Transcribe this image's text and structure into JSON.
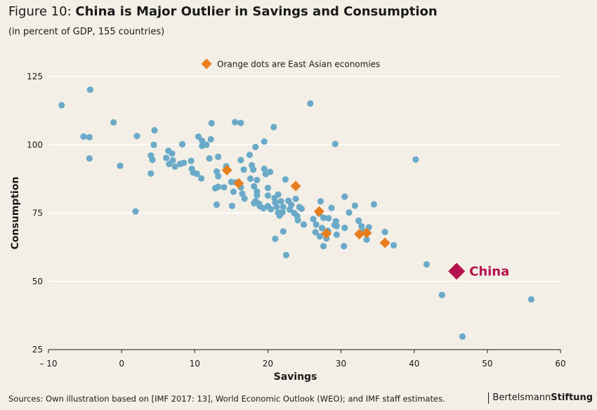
{
  "header": {
    "title_prefix": "Figure 10: ",
    "title_main": "China is Major Outlier in Savings and Consumption",
    "subtitle": "(in percent of GDP, 155 countries)"
  },
  "footer": {
    "source": "Sources: Own illustration based on [IMF 2017: 13], World Economic Outlook (WEO); and IMF staff estimates.",
    "logo_regular": "Bertelsmann",
    "logo_bold": "Stiftung"
  },
  "colors": {
    "background": "#f3efe6",
    "dot": "#6aaac8",
    "east_asia": "#e87d1e",
    "china": "#b5124c",
    "grid": "#ffffff"
  },
  "chart_data": {
    "type": "scatter",
    "xlabel": "Savings",
    "ylabel": "Consumption",
    "xlim": [
      -10,
      60
    ],
    "ylim": [
      25,
      125
    ],
    "xticks": [
      -10,
      0,
      10,
      20,
      30,
      40,
      50,
      60
    ],
    "xtick_labels": [
      "– 10",
      "0",
      "10",
      "20",
      "30",
      "40",
      "50",
      "60"
    ],
    "yticks": [
      25,
      50,
      75,
      100,
      125
    ],
    "grid": "horizontal",
    "legend": {
      "label": "Orange dots are East Asian economies",
      "position": "top-center"
    },
    "annotation": {
      "label": "China",
      "x": 45.8,
      "y": 53.7
    },
    "series": [
      {
        "name": "",
        "marker": "circle",
        "points": [
          [
            -8.2,
            114.5
          ],
          [
            -4.3,
            120.2
          ],
          [
            -5.2,
            103.0
          ],
          [
            -4.4,
            102.8
          ],
          [
            -4.4,
            95.0
          ],
          [
            -1.1,
            108.2
          ],
          [
            -0.2,
            92.3
          ],
          [
            2.1,
            103.2
          ],
          [
            1.9,
            75.6
          ],
          [
            4.5,
            105.3
          ],
          [
            4.4,
            100.0
          ],
          [
            4.0,
            96.1
          ],
          [
            4.2,
            94.5
          ],
          [
            4.0,
            89.5
          ],
          [
            6.1,
            95.2
          ],
          [
            6.4,
            97.8
          ],
          [
            6.9,
            96.8
          ],
          [
            7.0,
            94.3
          ],
          [
            7.3,
            92.0
          ],
          [
            6.5,
            93.0
          ],
          [
            8.0,
            93.0
          ],
          [
            8.3,
            100.2
          ],
          [
            8.5,
            93.4
          ],
          [
            9.5,
            94.1
          ],
          [
            9.6,
            91.2
          ],
          [
            9.8,
            89.8
          ],
          [
            10.3,
            89.4
          ],
          [
            10.9,
            87.7
          ],
          [
            10.5,
            103.0
          ],
          [
            11.0,
            101.5
          ],
          [
            11.0,
            99.6
          ],
          [
            11.6,
            100.0
          ],
          [
            12.2,
            102.0
          ],
          [
            12.3,
            107.9
          ],
          [
            12.0,
            95.0
          ],
          [
            13.2,
            95.6
          ],
          [
            13.0,
            90.2
          ],
          [
            13.2,
            88.5
          ],
          [
            12.8,
            84.1
          ],
          [
            13.2,
            84.6
          ],
          [
            14.0,
            84.4
          ],
          [
            14.3,
            92.1
          ],
          [
            13.0,
            78.1
          ],
          [
            15.0,
            86.4
          ],
          [
            15.3,
            82.8
          ],
          [
            15.1,
            77.6
          ],
          [
            15.6,
            86.2
          ],
          [
            15.5,
            108.3
          ],
          [
            16.3,
            108.0
          ],
          [
            16.3,
            94.4
          ],
          [
            16.7,
            90.9
          ],
          [
            16.3,
            84.4
          ],
          [
            16.5,
            82.1
          ],
          [
            16.8,
            80.3
          ],
          [
            17.5,
            96.3
          ],
          [
            18.3,
            99.2
          ],
          [
            17.8,
            92.5
          ],
          [
            18.0,
            90.9
          ],
          [
            18.5,
            87.1
          ],
          [
            17.6,
            87.6
          ],
          [
            18.1,
            84.8
          ],
          [
            18.5,
            82.9
          ],
          [
            18.5,
            81.5
          ],
          [
            18.3,
            79.3
          ],
          [
            18.8,
            78.4
          ],
          [
            19.4,
            76.8
          ],
          [
            18.9,
            77.5
          ],
          [
            18.1,
            78.6
          ],
          [
            19.5,
            91.2
          ],
          [
            19.7,
            89.3
          ],
          [
            20.0,
            84.2
          ],
          [
            20.0,
            81.4
          ],
          [
            20.0,
            77.5
          ],
          [
            20.4,
            76.4
          ],
          [
            19.5,
            101.2
          ],
          [
            20.3,
            90.1
          ],
          [
            20.8,
            106.5
          ],
          [
            20.9,
            80.5
          ],
          [
            21.0,
            78.9
          ],
          [
            21.4,
            81.8
          ],
          [
            21.2,
            77.3
          ],
          [
            21.4,
            75.2
          ],
          [
            21.6,
            74.1
          ],
          [
            22.0,
            75.3
          ],
          [
            21.8,
            79.3
          ],
          [
            22.1,
            77.2
          ],
          [
            21.0,
            65.6
          ],
          [
            22.1,
            68.3
          ],
          [
            22.5,
            59.6
          ],
          [
            22.4,
            87.3
          ],
          [
            22.8,
            79.5
          ],
          [
            23.2,
            78.0
          ],
          [
            23.0,
            76.3
          ],
          [
            23.6,
            75.0
          ],
          [
            24.0,
            73.9
          ],
          [
            24.3,
            77.2
          ],
          [
            24.1,
            72.4
          ],
          [
            23.8,
            80.2
          ],
          [
            24.6,
            76.6
          ],
          [
            24.9,
            70.8
          ],
          [
            25.8,
            115.1
          ],
          [
            26.2,
            72.8
          ],
          [
            26.6,
            70.8
          ],
          [
            26.5,
            68.0
          ],
          [
            27.0,
            74.8
          ],
          [
            27.2,
            79.3
          ],
          [
            27.4,
            69.5
          ],
          [
            27.1,
            66.5
          ],
          [
            27.6,
            73.3
          ],
          [
            27.6,
            62.9
          ],
          [
            28.2,
            68.5
          ],
          [
            28.0,
            65.7
          ],
          [
            28.3,
            73.1
          ],
          [
            28.7,
            76.9
          ],
          [
            29.1,
            70.6
          ],
          [
            29.3,
            72.0
          ],
          [
            29.4,
            70.2
          ],
          [
            29.4,
            67.1
          ],
          [
            29.2,
            100.3
          ],
          [
            30.5,
            81.0
          ],
          [
            30.5,
            69.6
          ],
          [
            30.4,
            62.9
          ],
          [
            31.1,
            75.2
          ],
          [
            31.9,
            77.7
          ],
          [
            32.4,
            72.2
          ],
          [
            32.8,
            70.2
          ],
          [
            33.0,
            68.4
          ],
          [
            33.5,
            65.3
          ],
          [
            33.8,
            69.8
          ],
          [
            34.5,
            78.2
          ],
          [
            36.0,
            68.1
          ],
          [
            37.2,
            63.2
          ],
          [
            40.2,
            94.6
          ],
          [
            41.7,
            56.2
          ],
          [
            43.8,
            45.0
          ],
          [
            46.6,
            29.8
          ],
          [
            56.0,
            43.4
          ]
        ]
      },
      {
        "name": "East Asian economies",
        "marker": "diamond",
        "points": [
          [
            14.4,
            90.7
          ],
          [
            16.0,
            85.9
          ],
          [
            23.8,
            84.9
          ],
          [
            27.0,
            75.6
          ],
          [
            28.0,
            67.5
          ],
          [
            32.5,
            67.3
          ],
          [
            33.5,
            67.7
          ],
          [
            36.0,
            64.1
          ]
        ]
      },
      {
        "name": "China",
        "marker": "diamond-large",
        "points": [
          [
            45.8,
            53.7
          ]
        ]
      }
    ]
  }
}
